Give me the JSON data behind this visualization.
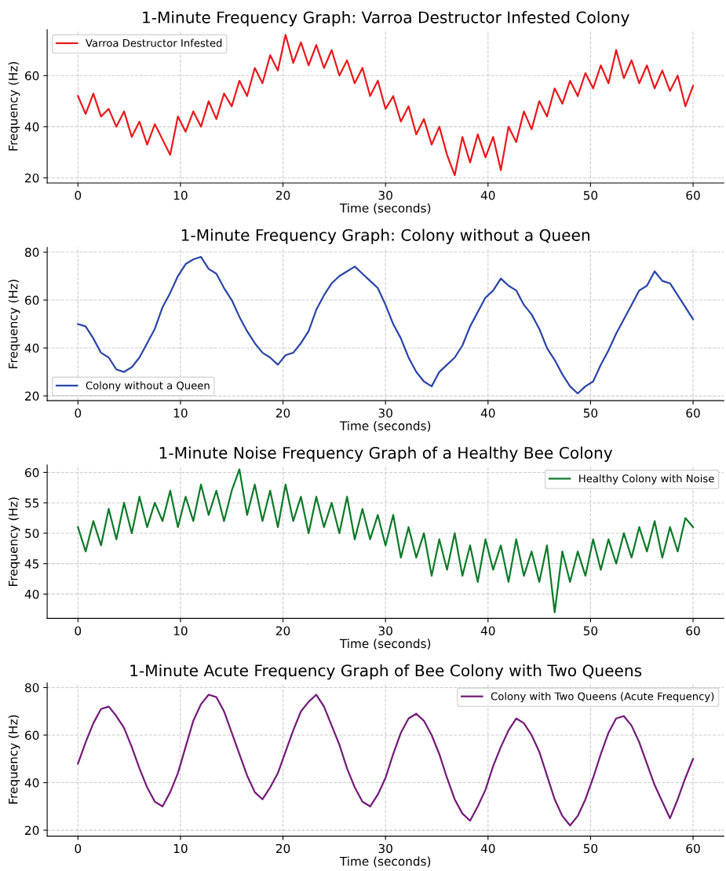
{
  "chart_data": [
    {
      "type": "line",
      "title": "1-Minute Frequency Graph: Varroa Destructor Infested Colony",
      "xlabel": "Time (seconds)",
      "ylabel": "Frequency (Hz)",
      "xlim": [
        -3,
        63
      ],
      "ylim": [
        18,
        78
      ],
      "xticks": [
        0,
        10,
        20,
        30,
        40,
        50,
        60
      ],
      "yticks": [
        20,
        40,
        60
      ],
      "grid": true,
      "legend": "top left",
      "x": [
        0,
        0.75,
        1.5,
        2.25,
        3,
        3.75,
        4.5,
        5.25,
        6,
        6.75,
        7.5,
        8.25,
        9,
        9.75,
        10.5,
        11.25,
        12,
        12.75,
        13.5,
        14.25,
        15,
        15.75,
        16.5,
        17.25,
        18,
        18.75,
        19.5,
        20.25,
        21,
        21.75,
        22.5,
        23.25,
        24,
        24.75,
        25.5,
        26.25,
        27,
        27.75,
        28.5,
        29.25,
        30,
        30.75,
        31.5,
        32.25,
        33,
        33.75,
        34.5,
        35.25,
        36,
        36.75,
        37.5,
        38.25,
        39,
        39.75,
        40.5,
        41.25,
        42,
        42.75,
        43.5,
        44.25,
        45,
        45.75,
        46.5,
        47.25,
        48,
        48.75,
        49.5,
        50.25,
        51,
        51.75,
        52.5,
        53.25,
        54,
        54.75,
        55.5,
        56.25,
        57,
        57.75,
        58.5,
        59.25,
        60
      ],
      "series": [
        {
          "name": "Varroa Destructor Infested",
          "color": "#e8191c",
          "values": [
            52,
            45,
            53,
            44,
            47,
            40,
            46,
            36,
            42,
            33,
            41,
            35,
            29,
            44,
            38,
            46,
            40,
            50,
            43,
            53,
            48,
            58,
            52,
            63,
            57,
            68,
            62,
            76,
            65,
            73,
            64,
            72,
            63,
            70,
            60,
            66,
            57,
            63,
            52,
            58,
            47,
            52,
            42,
            48,
            37,
            43,
            33,
            40,
            29,
            21,
            36,
            26,
            37,
            28,
            36,
            23,
            40,
            34,
            46,
            39,
            50,
            44,
            55,
            49,
            58,
            52,
            61,
            55,
            64,
            57,
            70,
            59,
            66,
            57,
            64,
            55,
            62,
            54,
            60,
            48,
            56
          ]
        }
      ]
    },
    {
      "type": "line",
      "title": "1-Minute Frequency Graph: Colony without a Queen",
      "xlabel": "Time (seconds)",
      "ylabel": "Frequency (Hz)",
      "xlim": [
        -3,
        63
      ],
      "ylim": [
        18,
        82
      ],
      "xticks": [
        0,
        10,
        20,
        30,
        40,
        50,
        60
      ],
      "yticks": [
        20,
        40,
        60,
        80
      ],
      "grid": true,
      "legend": "bottom left",
      "x": [
        0,
        0.75,
        1.5,
        2.25,
        3,
        3.75,
        4.5,
        5.25,
        6,
        6.75,
        7.5,
        8.25,
        9,
        9.75,
        10.5,
        11.25,
        12,
        12.75,
        13.5,
        14.25,
        15,
        15.75,
        16.5,
        17.25,
        18,
        18.75,
        19.5,
        20.25,
        21,
        21.75,
        22.5,
        23.25,
        24,
        24.75,
        25.5,
        26.25,
        27,
        27.75,
        28.5,
        29.25,
        30,
        30.75,
        31.5,
        32.25,
        33,
        33.75,
        34.5,
        35.25,
        36,
        36.75,
        37.5,
        38.25,
        39,
        39.75,
        40.5,
        41.25,
        42,
        42.75,
        43.5,
        44.25,
        45,
        45.75,
        46.5,
        47.25,
        48,
        48.75,
        49.5,
        50.25,
        51,
        51.75,
        52.5,
        53.25,
        54,
        54.75,
        55.5,
        56.25,
        57,
        57.75,
        58.5,
        59.25,
        60
      ],
      "series": [
        {
          "name": "Colony without a Queen",
          "color": "#2a45a8",
          "values": [
            50,
            49,
            44,
            38,
            36,
            31,
            30,
            32,
            36,
            42,
            48,
            57,
            63,
            70,
            75,
            77,
            78,
            73,
            71,
            65,
            60,
            53,
            47,
            42,
            38,
            36,
            33,
            37,
            38,
            42,
            47,
            56,
            62,
            67,
            70,
            72,
            74,
            71,
            68,
            65,
            58,
            50,
            44,
            36,
            30,
            26,
            24,
            30,
            33,
            36,
            41,
            49,
            55,
            61,
            64,
            69,
            66,
            64,
            58,
            54,
            48,
            40,
            35,
            29,
            24,
            21,
            24,
            26,
            33,
            39,
            46,
            52,
            58,
            64,
            66,
            72,
            68,
            67,
            62,
            57,
            52
          ]
        }
      ]
    },
    {
      "type": "line",
      "title": "1-Minute Noise Frequency Graph of a Healthy Bee Colony",
      "xlabel": "Time (seconds)",
      "ylabel": "Frequency (Hz)",
      "xlim": [
        -3,
        63
      ],
      "ylim": [
        36,
        61.2
      ],
      "xticks": [
        0,
        10,
        20,
        30,
        40,
        50,
        60
      ],
      "yticks": [
        40,
        45,
        50,
        55,
        60
      ],
      "grid": true,
      "legend": "top right",
      "x": [
        0,
        0.75,
        1.5,
        2.25,
        3,
        3.75,
        4.5,
        5.25,
        6,
        6.75,
        7.5,
        8.25,
        9,
        9.75,
        10.5,
        11.25,
        12,
        12.75,
        13.5,
        14.25,
        15,
        15.75,
        16.5,
        17.25,
        18,
        18.75,
        19.5,
        20.25,
        21,
        21.75,
        22.5,
        23.25,
        24,
        24.75,
        25.5,
        26.25,
        27,
        27.75,
        28.5,
        29.25,
        30,
        30.75,
        31.5,
        32.25,
        33,
        33.75,
        34.5,
        35.25,
        36,
        36.75,
        37.5,
        38.25,
        39,
        39.75,
        40.5,
        41.25,
        42,
        42.75,
        43.5,
        44.25,
        45,
        45.75,
        46.5,
        47.25,
        48,
        48.75,
        49.5,
        50.25,
        51,
        51.75,
        52.5,
        53.25,
        54,
        54.75,
        55.5,
        56.25,
        57,
        57.75,
        58.5,
        59.25,
        60
      ],
      "series": [
        {
          "name": "Healthy Colony with Noise",
          "color": "#0d7a2a",
          "values": [
            51,
            47,
            52,
            48,
            54,
            49,
            55,
            50,
            56,
            51,
            55,
            52,
            57,
            51,
            56,
            52,
            58,
            53,
            57,
            52,
            57,
            60.5,
            53,
            58,
            52,
            57,
            51,
            58,
            52,
            56,
            50,
            56,
            51,
            55,
            50,
            56,
            49,
            54,
            49,
            53,
            48,
            53,
            46,
            51,
            46,
            50,
            43,
            49,
            44,
            50,
            43,
            48,
            42,
            49,
            44,
            48,
            42,
            49,
            43,
            47,
            42,
            48,
            37,
            47,
            42,
            47,
            43,
            49,
            44,
            49,
            45,
            50,
            46,
            51,
            47,
            52,
            46,
            51,
            47,
            52.5,
            51
          ]
        }
      ]
    },
    {
      "type": "line",
      "title": "1-Minute Acute Frequency Graph of Bee Colony with Two Queens",
      "xlabel": "Time (seconds)",
      "ylabel": "Frequency (Hz)",
      "xlim": [
        -3,
        63
      ],
      "ylim": [
        17.5,
        82
      ],
      "xticks": [
        0,
        10,
        20,
        30,
        40,
        50,
        60
      ],
      "yticks": [
        20,
        40,
        60,
        80
      ],
      "grid": true,
      "legend": "top right",
      "x": [
        0,
        0.75,
        1.5,
        2.25,
        3,
        3.75,
        4.5,
        5.25,
        6,
        6.75,
        7.5,
        8.25,
        9,
        9.75,
        10.5,
        11.25,
        12,
        12.75,
        13.5,
        14.25,
        15,
        15.75,
        16.5,
        17.25,
        18,
        18.75,
        19.5,
        20.25,
        21,
        21.75,
        22.5,
        23.25,
        24,
        24.75,
        25.5,
        26.25,
        27,
        27.75,
        28.5,
        29.25,
        30,
        30.75,
        31.5,
        32.25,
        33,
        33.75,
        34.5,
        35.25,
        36,
        36.75,
        37.5,
        38.25,
        39,
        39.75,
        40.5,
        41.25,
        42,
        42.75,
        43.5,
        44.25,
        45,
        45.75,
        46.5,
        47.25,
        48,
        48.75,
        49.5,
        50.25,
        51,
        51.75,
        52.5,
        53.25,
        54,
        54.75,
        55.5,
        56.25,
        57,
        57.75,
        58.5,
        59.25,
        60
      ],
      "series": [
        {
          "name": "Colony with Two Queens (Acute Frequency)",
          "color": "#731a78",
          "values": [
            48,
            57,
            65,
            71,
            72,
            68,
            63,
            55,
            46,
            38,
            32,
            30,
            36,
            44,
            55,
            66,
            73,
            77,
            76,
            70,
            61,
            52,
            43,
            36,
            33,
            38,
            44,
            53,
            62,
            70,
            74,
            77,
            72,
            64,
            56,
            46,
            38,
            32,
            30,
            35,
            42,
            52,
            61,
            67,
            69,
            66,
            60,
            52,
            42,
            33,
            27,
            24,
            30,
            37,
            47,
            55,
            62,
            67,
            65,
            60,
            53,
            43,
            33,
            26,
            22,
            26,
            33,
            42,
            52,
            61,
            67,
            68,
            64,
            57,
            48,
            39,
            32,
            25,
            33,
            42,
            50
          ]
        }
      ]
    }
  ]
}
